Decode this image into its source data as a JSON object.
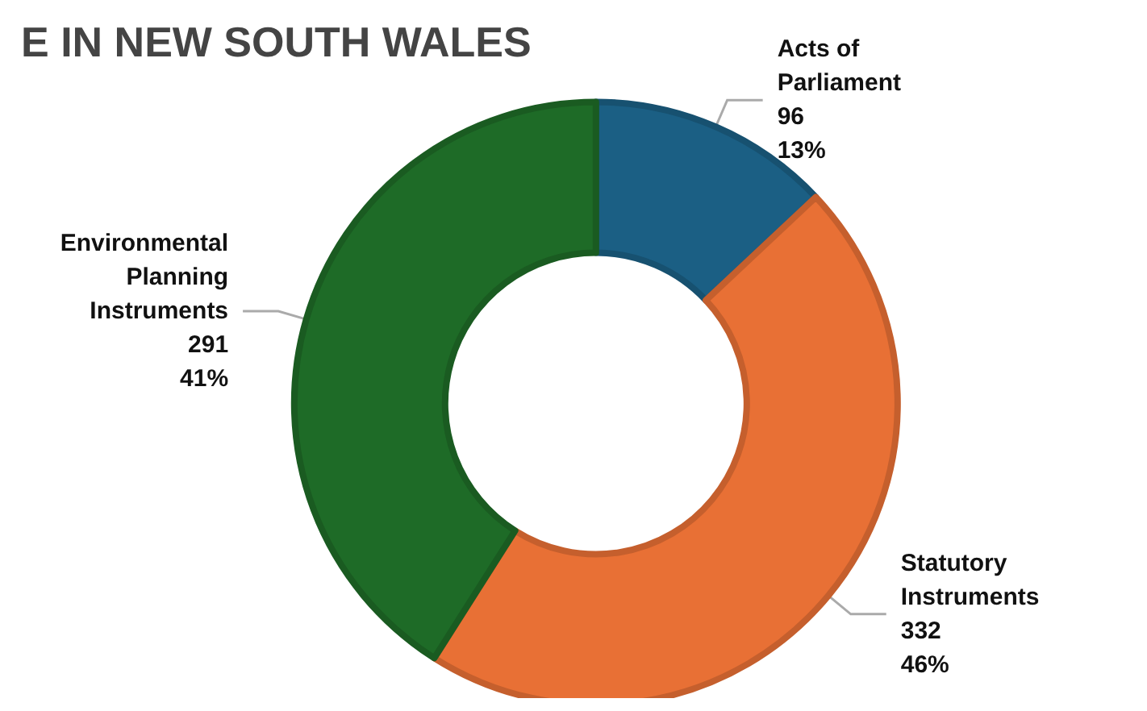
{
  "chart_data": {
    "type": "donut",
    "title": "E IN NEW SOUTH WALES",
    "categories": [
      "Acts of\nParliament",
      "Statutory\nInstruments",
      "Environmental\nPlanning\nInstruments"
    ],
    "values": [
      13,
      46,
      41
    ],
    "colors": [
      "#1b5f84",
      "#e87035",
      "#1e6b27"
    ],
    "value_labels": [
      "96\n13%",
      "332\n46%",
      "291\n41%"
    ]
  }
}
